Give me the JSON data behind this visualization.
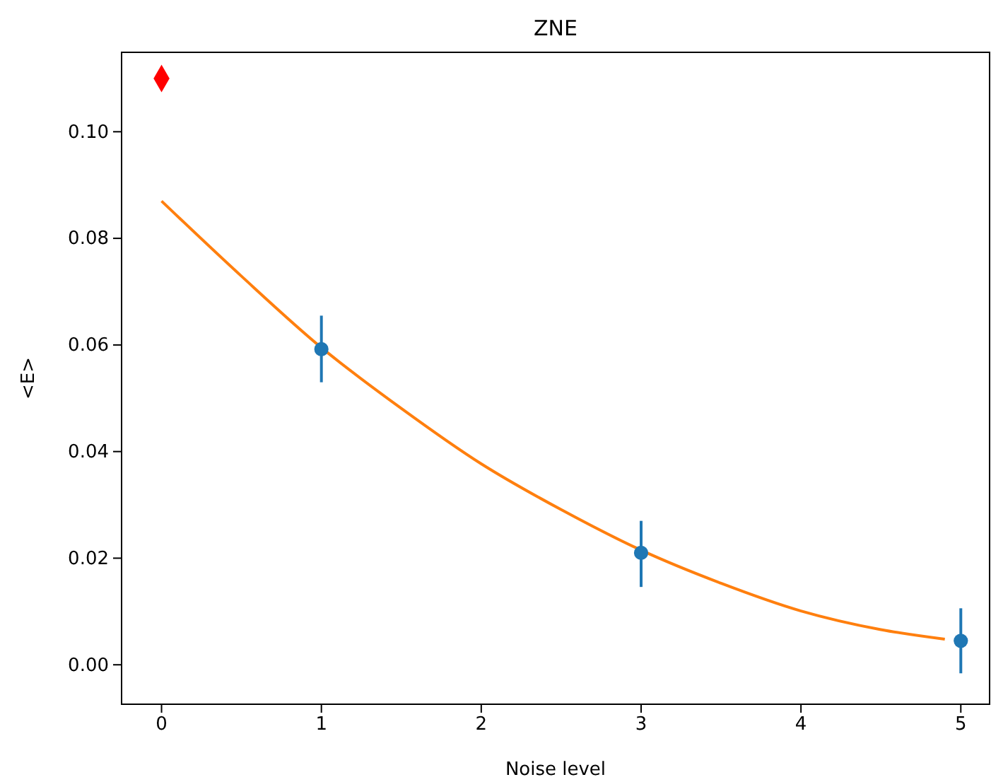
{
  "chart_data": {
    "type": "scatter",
    "title": "ZNE",
    "xlabel": "Noise level",
    "ylabel": "<E>",
    "xlim": [
      -0.25,
      5.18
    ],
    "ylim": [
      -0.0074,
      0.1149
    ],
    "xticks": [
      0,
      1,
      2,
      3,
      4,
      5
    ],
    "yticks": [
      {
        "value": 0,
        "label": "0.00"
      },
      {
        "value": 0.02,
        "label": "0.02"
      },
      {
        "value": 0.04,
        "label": "0.04"
      },
      {
        "value": 0.06,
        "label": "0.06"
      },
      {
        "value": 0.08,
        "label": "0.08"
      },
      {
        "value": 0.1,
        "label": "0.10"
      }
    ],
    "grid": false,
    "series": [
      {
        "type": "line",
        "color": "#ff7f0e",
        "marker": "none",
        "line_style": "solid",
        "x": [
          0,
          0.5,
          1,
          1.5,
          2,
          2.5,
          3,
          3.5,
          4,
          4.5,
          4.9
        ],
        "values": [
          0.087,
          0.0729,
          0.0595,
          0.0481,
          0.0377,
          0.0291,
          0.0215,
          0.0153,
          0.0101,
          0.0066,
          0.0048
        ]
      },
      {
        "color": "#1f77b4",
        "marker": "circle",
        "x": [
          1,
          3,
          5
        ],
        "values": [
          0.0592,
          0.021,
          0.0045
        ],
        "errors": [
          [
            0.053,
            0.0655
          ],
          [
            0.0146,
            0.027
          ],
          [
            -0.0016,
            0.0106
          ]
        ]
      },
      {
        "color": "#ff0000",
        "marker": "diamond",
        "x": [
          0
        ],
        "values": [
          0.11
        ]
      }
    ]
  }
}
